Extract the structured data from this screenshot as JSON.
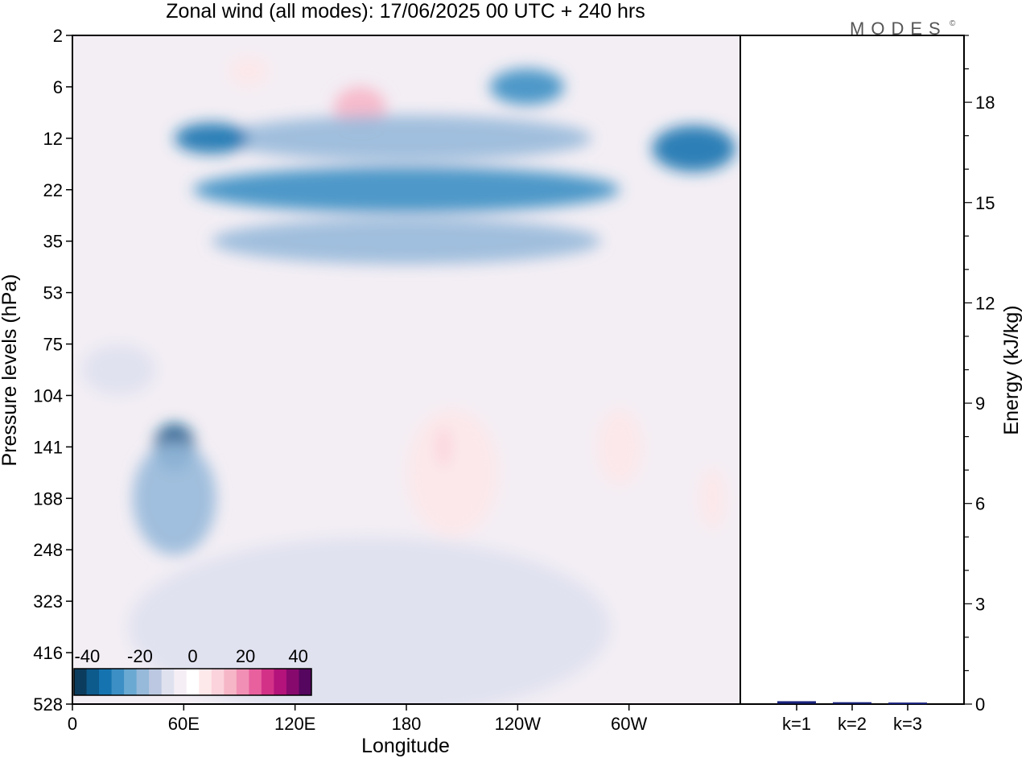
{
  "chart_data": [
    {
      "type": "heatmap",
      "title": "Zonal wind (all modes):  17/06/2025  00 UTC  + 240 hrs",
      "xlabel": "Longitude",
      "ylabel": "Pressure levels (hPa)",
      "x_ticks": [
        "0",
        "60E",
        "120E",
        "180",
        "120W",
        "60W"
      ],
      "x_tick_degrees": [
        0,
        60,
        120,
        180,
        240,
        300
      ],
      "xlim": [
        0,
        360
      ],
      "y_ticks": [
        "2",
        "6",
        "12",
        "22",
        "35",
        "53",
        "75",
        "104",
        "141",
        "188",
        "248",
        "323",
        "416",
        "528"
      ],
      "y_scale": "categorical-levels, top to bottom",
      "colorbar": {
        "tick_labels": [
          "-40",
          "-20",
          "0",
          "20",
          "40"
        ],
        "tick_values": [
          -40,
          -20,
          0,
          20,
          40
        ],
        "range": [
          -45,
          45
        ],
        "step": 5,
        "colors": [
          "#0b3c5d",
          "#0d5a8c",
          "#1574b0",
          "#3c8fc4",
          "#6aa9d2",
          "#97b9da",
          "#bcc8e1",
          "#dfe1ef",
          "#f5eef5",
          "#ffffff",
          "#fde8ea",
          "#fbd3dc",
          "#f7b6c8",
          "#f190b4",
          "#e8609e",
          "#d33188",
          "#b3137a",
          "#88096e",
          "#55065e"
        ]
      },
      "fields": [
        {
          "lon": 155,
          "level": 1.4,
          "value": 18,
          "lon_width": 28,
          "level_width": 0.8
        },
        {
          "lon": 95,
          "level": 0.7,
          "value": 8,
          "lon_width": 22,
          "level_width": 0.6
        },
        {
          "lon": 245,
          "level": 1.0,
          "value": -28,
          "lon_width": 40,
          "level_width": 0.7
        },
        {
          "lon": 180,
          "level": 2.0,
          "value": -16,
          "lon_width": 200,
          "level_width": 0.9
        },
        {
          "lon": 180,
          "level": 3.0,
          "value": -26,
          "lon_width": 230,
          "level_width": 0.9
        },
        {
          "lon": 75,
          "level": 2.0,
          "value": -32,
          "lon_width": 40,
          "level_width": 0.6
        },
        {
          "lon": 335,
          "level": 2.2,
          "value": -34,
          "lon_width": 45,
          "level_width": 0.9
        },
        {
          "lon": 180,
          "level": 4.0,
          "value": -18,
          "lon_width": 210,
          "level_width": 0.9
        },
        {
          "lon": 55,
          "level": 8.0,
          "value": -36,
          "lon_width": 22,
          "level_width": 0.9
        },
        {
          "lon": 55,
          "level": 9.0,
          "value": -18,
          "lon_width": 45,
          "level_width": 2.2
        },
        {
          "lon": 25,
          "level": 6.5,
          "value": -10,
          "lon_width": 40,
          "level_width": 1.0
        },
        {
          "lon": 205,
          "level": 8.5,
          "value": 8,
          "lon_width": 50,
          "level_width": 2.5
        },
        {
          "lon": 200,
          "level": 8.0,
          "value": 14,
          "lon_width": 8,
          "level_width": 0.8
        },
        {
          "lon": 295,
          "level": 8.0,
          "value": 8,
          "lon_width": 25,
          "level_width": 1.5
        },
        {
          "lon": 345,
          "level": 9.0,
          "value": 8,
          "lon_width": 15,
          "level_width": 1.2
        },
        {
          "lon": 160,
          "level": 11.5,
          "value": -6,
          "lon_width": 260,
          "level_width": 3.5
        }
      ]
    },
    {
      "type": "bar",
      "categories": [
        "k=1",
        "k=2",
        "k=3"
      ],
      "values": [
        0.05,
        0.02,
        0.01
      ],
      "ylabel": "Energy (kJ/kg)",
      "y_ticks": [
        "0",
        "3",
        "6",
        "9",
        "12",
        "15",
        "18"
      ],
      "ylim": [
        0,
        20
      ],
      "bar_color": "#1a237e"
    }
  ],
  "logo": "MODES",
  "logo_mark": "©",
  "colors": {
    "frame": "#000000",
    "background": "#ffffff"
  }
}
